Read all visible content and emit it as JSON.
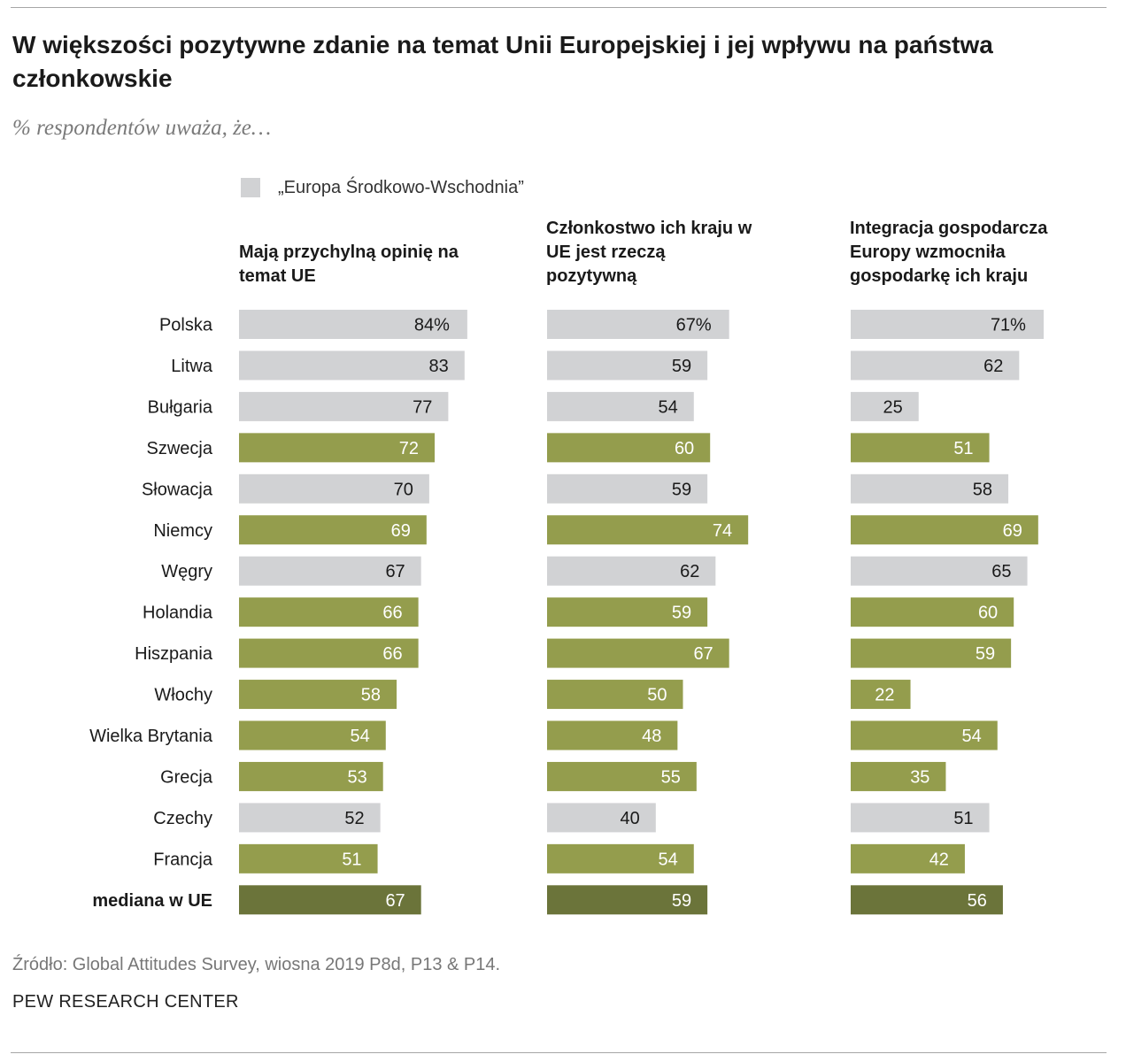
{
  "title": "W większości pozytywne zdanie na temat Unii Europejskiej i jej wpływu na państwa członkowskie",
  "subtitle": "% respondentów uważa, że…",
  "legend": {
    "label": "„Europa Środkowo-Wschodnia”"
  },
  "colors": {
    "cee": "#d1d2d4",
    "eu": "#949d4d",
    "median": "#6b743a",
    "label_dark": "#1a1a1a",
    "label_light": "#ffffff"
  },
  "chart_data": {
    "type": "bar",
    "orientation": "horizontal",
    "categories": [
      "Polska",
      "Litwa",
      "Bułgaria",
      "Szwecja",
      "Słowacja",
      "Niemcy",
      "Węgry",
      "Holandia",
      "Hiszpania",
      "Włochy",
      "Wielka Brytania",
      "Grecja",
      "Czechy",
      "Francja",
      "mediana w UE"
    ],
    "category_group": [
      "cee",
      "cee",
      "cee",
      "eu",
      "cee",
      "eu",
      "cee",
      "eu",
      "eu",
      "eu",
      "eu",
      "eu",
      "cee",
      "eu",
      "median"
    ],
    "series": [
      {
        "name": "Mają przychylną opinię na temat UE",
        "values": [
          84,
          83,
          77,
          72,
          70,
          69,
          67,
          66,
          66,
          58,
          54,
          53,
          52,
          51,
          67
        ]
      },
      {
        "name": "Członkostwo ich kraju w UE jest rzeczą pozytywną",
        "values": [
          67,
          59,
          54,
          60,
          59,
          74,
          62,
          59,
          67,
          50,
          48,
          55,
          40,
          54,
          59
        ]
      },
      {
        "name": "Integracja gospodarcza Europy wzmocniła gospodarkę ich kraju",
        "values": [
          71,
          62,
          25,
          51,
          58,
          69,
          65,
          60,
          59,
          22,
          54,
          35,
          51,
          42,
          56
        ]
      }
    ],
    "first_value_suffix": "%",
    "xlim": [
      0,
      100
    ],
    "legend_position": "top-left",
    "grid": false
  },
  "footer": {
    "source": "Źródło: Global Attitudes Survey, wiosna 2019 P8d, P13 & P14.",
    "brand": "PEW RESEARCH CENTER"
  }
}
